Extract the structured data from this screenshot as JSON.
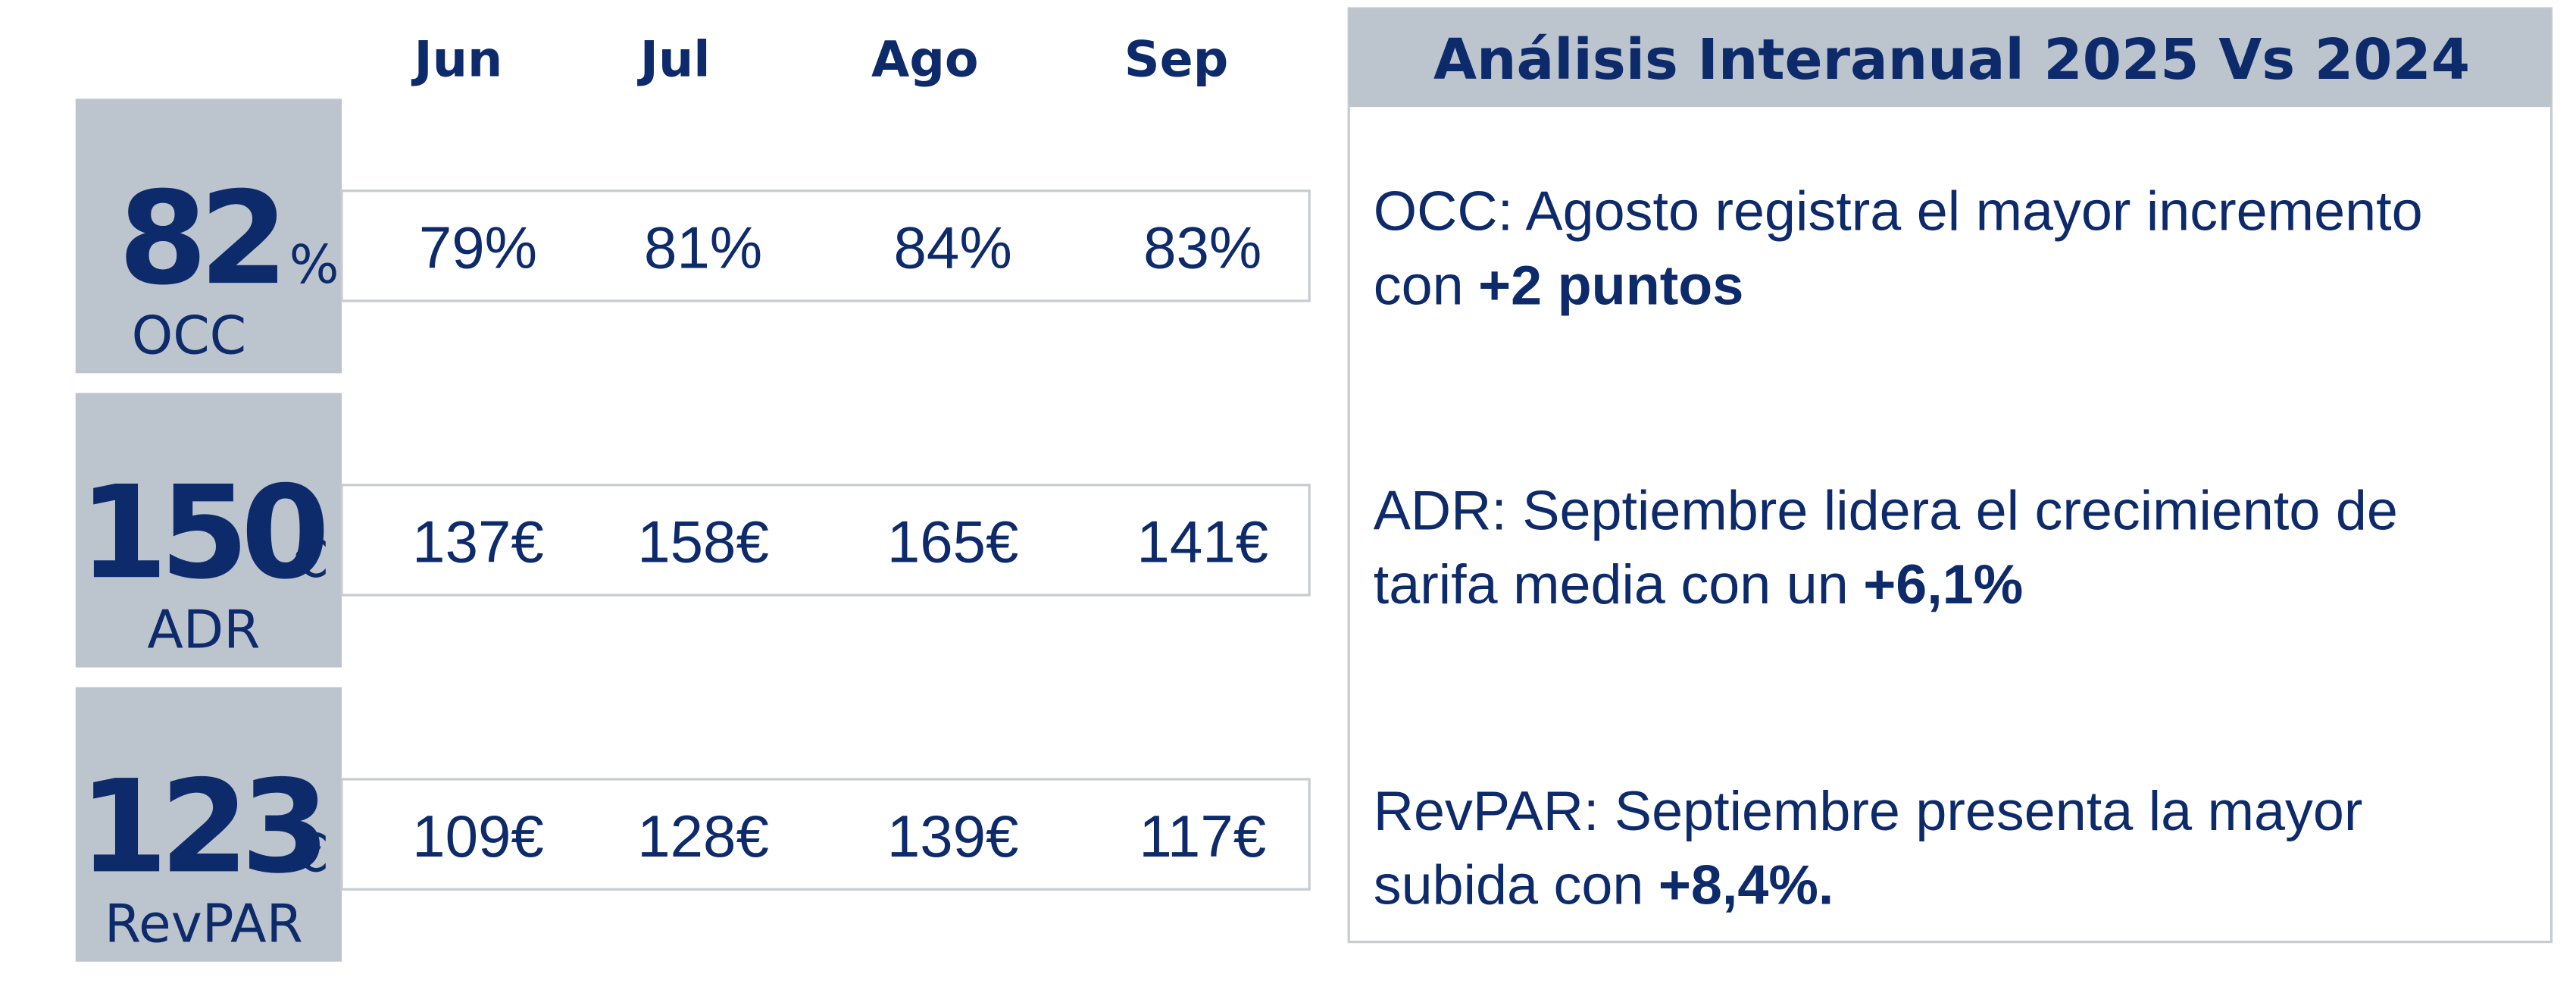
{
  "months": [
    "Jun",
    "Jul",
    "Ago",
    "Sep"
  ],
  "kpis": [
    {
      "value": "82",
      "unit": "%",
      "label": "OCC",
      "monthly": [
        "79%",
        "81%",
        "84%",
        "83%"
      ]
    },
    {
      "value": "150",
      "unit": "€",
      "label": "ADR",
      "monthly": [
        "137€",
        "158€",
        "165€",
        "141€"
      ]
    },
    {
      "value": "123",
      "unit": "€",
      "label": "RevPAR",
      "monthly": [
        "109€",
        "128€",
        "139€",
        "117€"
      ]
    }
  ],
  "panel": {
    "title": "Análisis Interanual 2025 Vs 2024",
    "notes": [
      {
        "line1": "OCC: Agosto registra el mayor incremento",
        "line2": "con",
        "highlight": "+2 puntos"
      },
      {
        "line1": "ADR: Septiembre lidera el crecimiento de",
        "line2": "tarifa media con un",
        "highlight": "+6,1%"
      },
      {
        "line1": "RevPAR: Septiembre presenta la mayor",
        "line2": "subida con",
        "highlight": "+8,4%."
      }
    ]
  }
}
